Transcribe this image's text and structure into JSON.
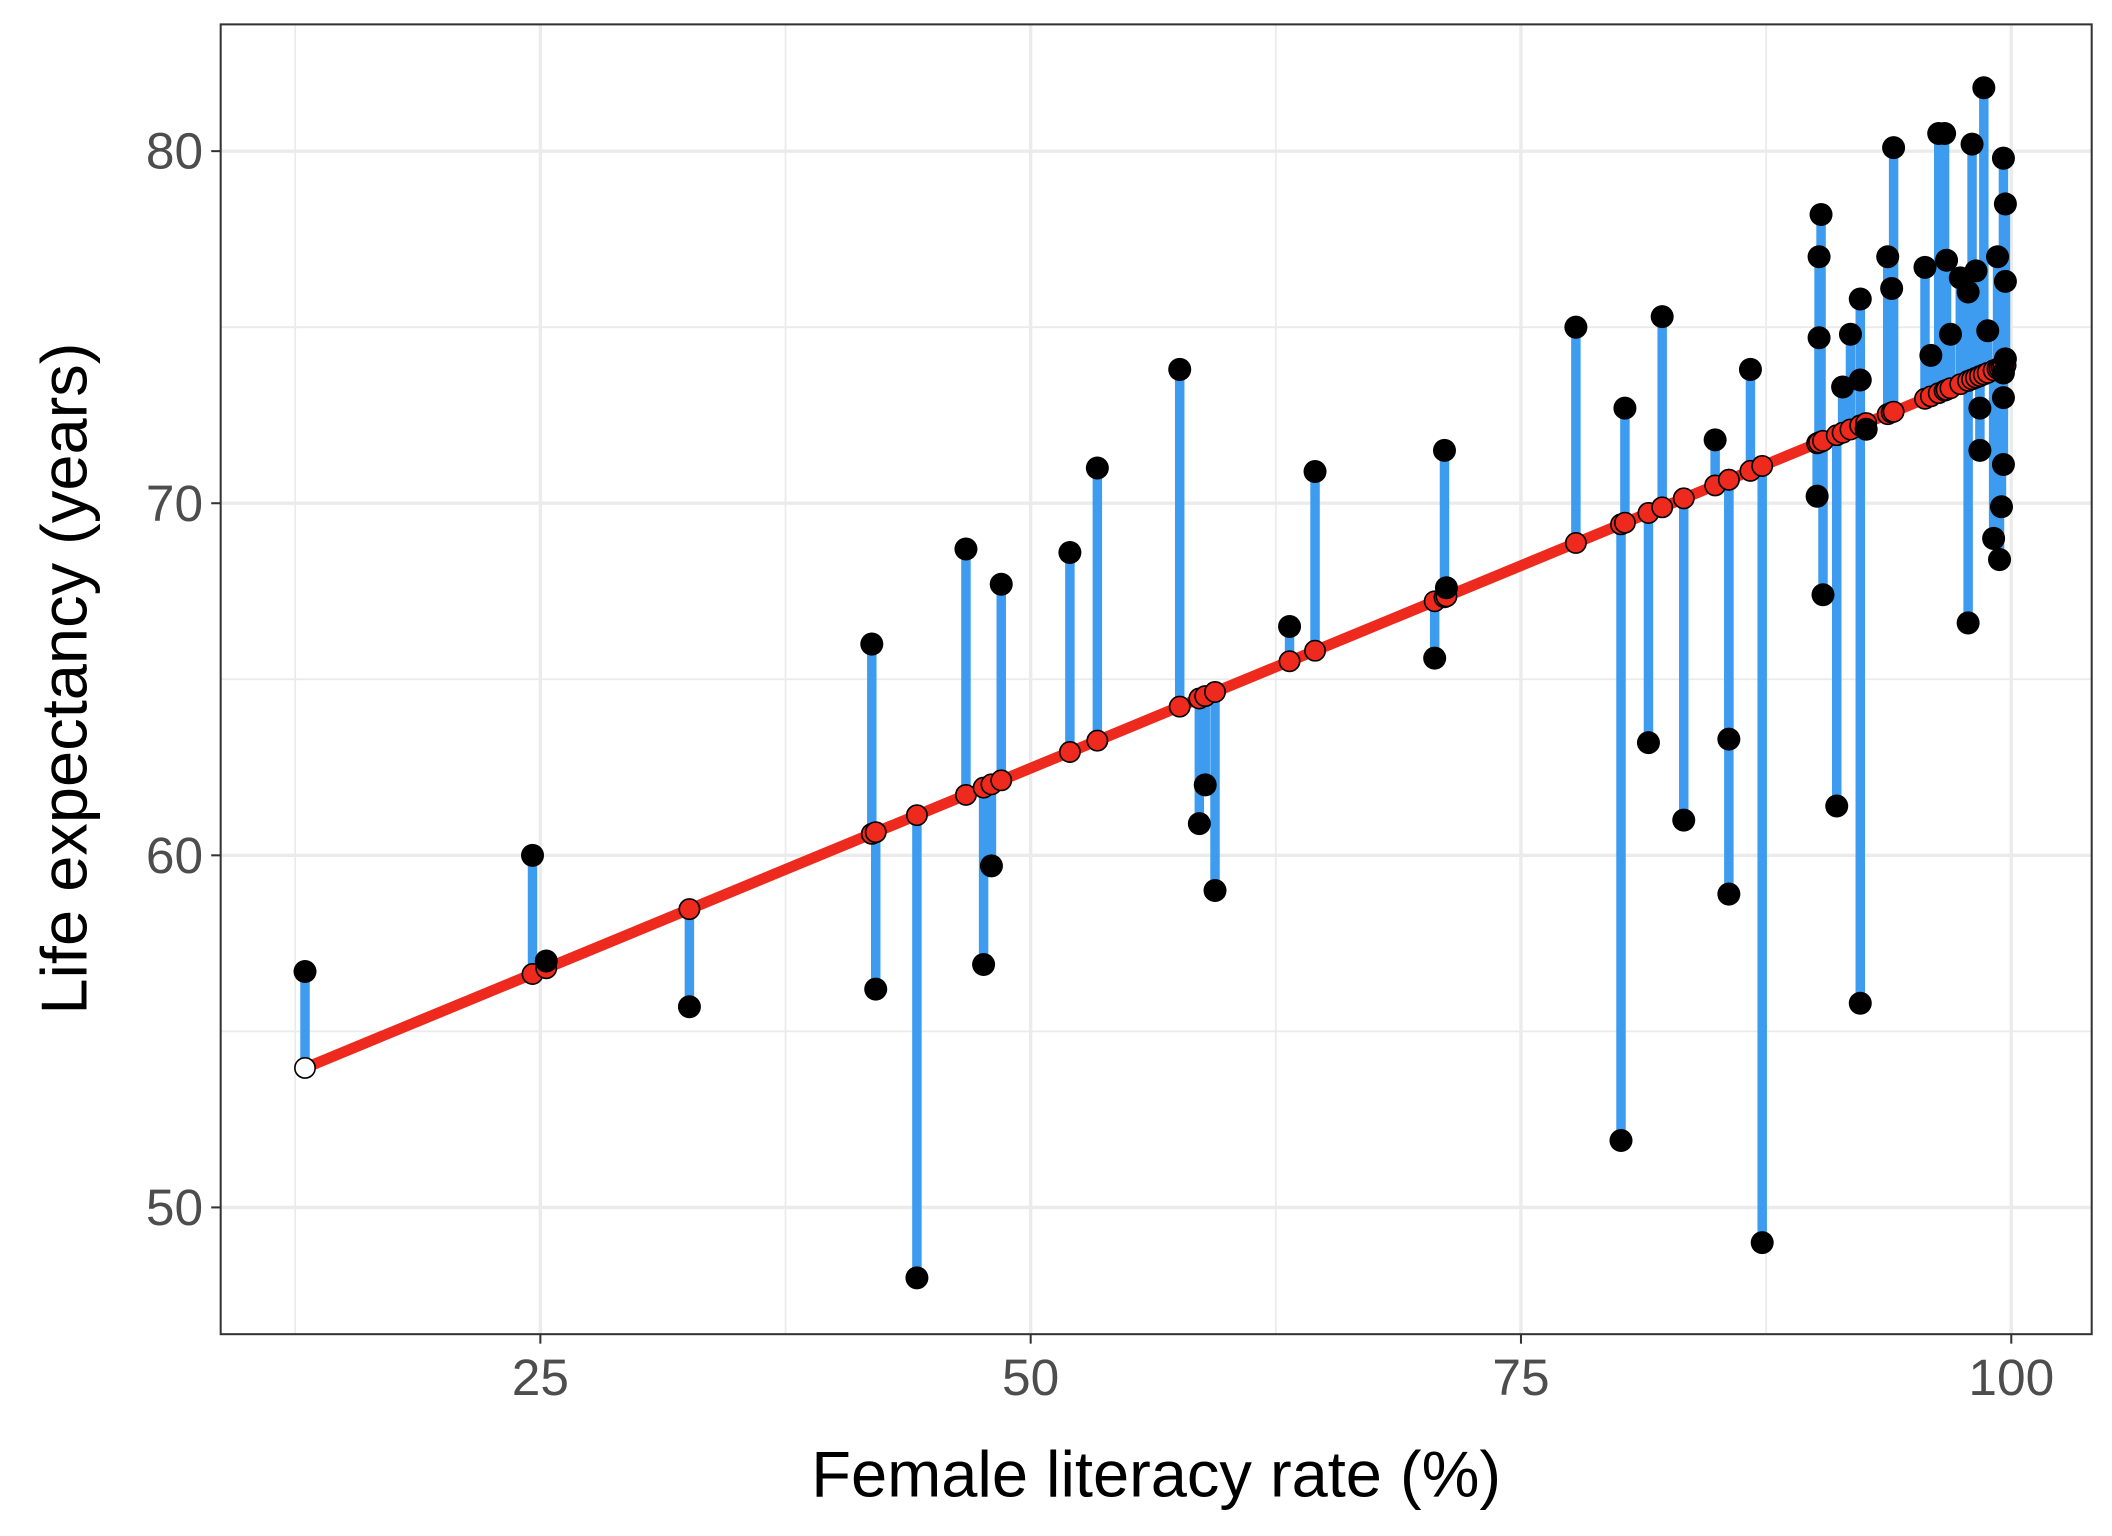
{
  "chart_data": {
    "type": "scatter",
    "title": "",
    "xlabel": "Female literacy rate (%)",
    "ylabel": "Life expectancy (years)",
    "xlim": [
      8.7,
      104.1
    ],
    "ylim": [
      46.4,
      83.6
    ],
    "x_ticks": [
      25,
      50,
      75,
      100
    ],
    "x_tick_labels": [
      "25",
      "50",
      "75",
      "100"
    ],
    "y_ticks": [
      50,
      60,
      70,
      80
    ],
    "y_tick_labels": [
      "50",
      "60",
      "70",
      "80"
    ],
    "grid": true,
    "legend": "none",
    "regression": {
      "intercept": 50.97,
      "slope": 0.2301
    },
    "colors": {
      "line": "#ee2a1e",
      "residual": "#3e9cf0",
      "point": "#000000",
      "fitted_fill": "#ee2a1e"
    },
    "points": [
      [
        13.0,
        56.7
      ],
      [
        24.6,
        60.0
      ],
      [
        25.3,
        57.0
      ],
      [
        32.6,
        55.7
      ],
      [
        41.9,
        66.0
      ],
      [
        42.1,
        56.2
      ],
      [
        44.2,
        48.0
      ],
      [
        46.7,
        68.7
      ],
      [
        47.6,
        56.9
      ],
      [
        48.0,
        59.7
      ],
      [
        48.5,
        67.7
      ],
      [
        52.0,
        68.6
      ],
      [
        53.4,
        71.0
      ],
      [
        57.6,
        73.8
      ],
      [
        58.6,
        60.9
      ],
      [
        58.9,
        62.0
      ],
      [
        59.4,
        59.0
      ],
      [
        63.2,
        66.5
      ],
      [
        64.5,
        70.9
      ],
      [
        70.6,
        65.6
      ],
      [
        71.1,
        71.5
      ],
      [
        71.2,
        67.6
      ],
      [
        77.8,
        75.0
      ],
      [
        80.1,
        51.9
      ],
      [
        80.3,
        72.7
      ],
      [
        81.5,
        63.2
      ],
      [
        82.2,
        75.3
      ],
      [
        83.3,
        61.0
      ],
      [
        84.9,
        71.8
      ],
      [
        85.6,
        63.3
      ],
      [
        85.6,
        58.9
      ],
      [
        86.7,
        73.8
      ],
      [
        87.3,
        49.0
      ],
      [
        90.1,
        70.2
      ],
      [
        90.2,
        77.0
      ],
      [
        90.3,
        78.2
      ],
      [
        90.2,
        74.7
      ],
      [
        90.4,
        67.4
      ],
      [
        91.1,
        61.4
      ],
      [
        91.4,
        73.3
      ],
      [
        91.8,
        74.8
      ],
      [
        92.3,
        55.8
      ],
      [
        92.3,
        75.8
      ],
      [
        92.3,
        73.5
      ],
      [
        92.6,
        72.1
      ],
      [
        93.7,
        77.0
      ],
      [
        93.9,
        76.1
      ],
      [
        94.0,
        80.1
      ],
      [
        95.6,
        76.7
      ],
      [
        95.9,
        74.2
      ],
      [
        96.3,
        80.5
      ],
      [
        96.6,
        80.5
      ],
      [
        96.7,
        76.9
      ],
      [
        96.9,
        74.8
      ],
      [
        97.4,
        76.4
      ],
      [
        97.8,
        76.0
      ],
      [
        97.8,
        66.6
      ],
      [
        98.0,
        80.2
      ],
      [
        98.2,
        76.6
      ],
      [
        98.4,
        71.5
      ],
      [
        98.4,
        72.7
      ],
      [
        98.6,
        81.8
      ],
      [
        98.8,
        74.9
      ],
      [
        99.1,
        69.0
      ],
      [
        99.3,
        77.0
      ],
      [
        99.4,
        68.4
      ],
      [
        99.5,
        69.9
      ],
      [
        99.6,
        71.1
      ],
      [
        99.6,
        79.8
      ],
      [
        99.7,
        78.5
      ],
      [
        99.7,
        76.3
      ],
      [
        99.6,
        73.0
      ],
      [
        99.7,
        74.1
      ],
      [
        99.6,
        73.7
      ]
    ]
  }
}
